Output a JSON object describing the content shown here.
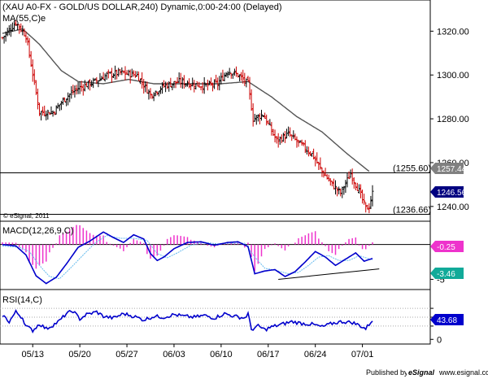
{
  "header": {
    "title": "(XAU A0-FX - GOLD/US DOLLAR,240) Dynamic,0:00-24:00 (Delayed)",
    "ma_label": "MA(55,C)e"
  },
  "copyright": "© eSignal, 2011",
  "footer": {
    "published_by": "Published by",
    "esignal": "eSignal",
    "site": "www.esignal.com"
  },
  "colors": {
    "up_bar": "#000000",
    "down_bar": "#cc0000",
    "ma_line": "#555555",
    "macd_line": "#0000cc",
    "signal_line": "#66bbee",
    "histogram": "#ee33cc",
    "rsi_line": "#0000cc",
    "macd_tag": "#ee33cc",
    "signal_tag": "#11aa99",
    "rsi_tag": "#0000cc",
    "price_tag": "#000080",
    "ma_tag": "#808080"
  },
  "chart_data": [
    {
      "type": "candlestick",
      "panel": "price",
      "ylim": [
        1234,
        1332
      ],
      "yticks": [
        1240.0,
        1260.0,
        1280.0,
        1300.0,
        1320.0
      ],
      "ytick_labels": [
        "1240.00",
        "1260.00",
        "1280.00",
        "1300.00",
        "1320.00"
      ],
      "x_labels": [
        "05/13",
        "05/20",
        "05/27",
        "06/03",
        "06/10",
        "06/17",
        "06/24",
        "07/01"
      ],
      "x_label_index": [
        18,
        46,
        74,
        102,
        130,
        158,
        186,
        214
      ],
      "x_count": 220,
      "close_anchors": [
        [
          0,
          1317
        ],
        [
          8,
          1324
        ],
        [
          14,
          1318
        ],
        [
          22,
          1283
        ],
        [
          30,
          1283
        ],
        [
          38,
          1290
        ],
        [
          45,
          1294
        ],
        [
          55,
          1297
        ],
        [
          62,
          1300
        ],
        [
          70,
          1301
        ],
        [
          80,
          1300
        ],
        [
          88,
          1291
        ],
        [
          96,
          1295
        ],
        [
          105,
          1297
        ],
        [
          112,
          1296
        ],
        [
          120,
          1295
        ],
        [
          128,
          1296
        ],
        [
          134,
          1302
        ],
        [
          140,
          1300
        ],
        [
          146,
          1296
        ],
        [
          149,
          1280
        ],
        [
          155,
          1282
        ],
        [
          163,
          1270
        ],
        [
          170,
          1273
        ],
        [
          176,
          1269
        ],
        [
          184,
          1264
        ],
        [
          190,
          1256
        ],
        [
          196,
          1250
        ],
        [
          201,
          1246
        ],
        [
          207,
          1255
        ],
        [
          212,
          1247
        ],
        [
          216,
          1239
        ],
        [
          218,
          1240
        ],
        [
          220,
          1246
        ]
      ],
      "ma_anchors": [
        [
          0,
          1319
        ],
        [
          12,
          1321
        ],
        [
          22,
          1314
        ],
        [
          35,
          1302
        ],
        [
          45,
          1297
        ],
        [
          60,
          1296
        ],
        [
          75,
          1298
        ],
        [
          90,
          1296
        ],
        [
          110,
          1296
        ],
        [
          130,
          1296
        ],
        [
          146,
          1297
        ],
        [
          160,
          1290
        ],
        [
          175,
          1281
        ],
        [
          190,
          1274
        ],
        [
          205,
          1264
        ],
        [
          218,
          1256
        ]
      ],
      "horizontal_levels": [
        1255.6,
        1236.66
      ],
      "horizontal_level_labels": [
        "(1255.60)",
        "(1236.66)"
      ],
      "ma_tag": "1257.44181",
      "price_tag": "1246.566"
    },
    {
      "type": "macd",
      "panel": "macd",
      "label": "MACD(12,26,9,C)",
      "ylim": [
        -6.0,
        3.0
      ],
      "ytick_labels": [
        "-5"
      ],
      "zero_line": true,
      "macd_anchors": [
        [
          0,
          0.0
        ],
        [
          8,
          -0.2
        ],
        [
          14,
          -1.5
        ],
        [
          20,
          -4.5
        ],
        [
          26,
          -5.6
        ],
        [
          32,
          -4.7
        ],
        [
          38,
          -2.8
        ],
        [
          45,
          -0.4
        ],
        [
          52,
          0.5
        ],
        [
          60,
          1.8
        ],
        [
          66,
          1.0
        ],
        [
          72,
          0.3
        ],
        [
          78,
          1.4
        ],
        [
          84,
          0.8
        ],
        [
          88,
          -1.3
        ],
        [
          92,
          -2.3
        ],
        [
          96,
          -1.8
        ],
        [
          102,
          -0.6
        ],
        [
          110,
          0.3
        ],
        [
          118,
          0.4
        ],
        [
          126,
          -0.1
        ],
        [
          134,
          0.3
        ],
        [
          140,
          0.4
        ],
        [
          146,
          -0.3
        ],
        [
          150,
          -4.2
        ],
        [
          156,
          -3.8
        ],
        [
          162,
          -3.6
        ],
        [
          168,
          -4.6
        ],
        [
          174,
          -3.9
        ],
        [
          180,
          -2.5
        ],
        [
          186,
          -1.0
        ],
        [
          192,
          -1.8
        ],
        [
          198,
          -3.0
        ],
        [
          204,
          -2.1
        ],
        [
          210,
          -1.2
        ],
        [
          215,
          -2.4
        ],
        [
          220,
          -2.0
        ]
      ],
      "signal_anchors": [
        [
          0,
          -0.2
        ],
        [
          10,
          -0.4
        ],
        [
          16,
          -1.0
        ],
        [
          22,
          -3.0
        ],
        [
          28,
          -4.6
        ],
        [
          34,
          -4.9
        ],
        [
          40,
          -3.5
        ],
        [
          48,
          -1.5
        ],
        [
          55,
          0.2
        ],
        [
          62,
          1.3
        ],
        [
          70,
          0.9
        ],
        [
          78,
          0.9
        ],
        [
          86,
          0.6
        ],
        [
          92,
          -1.3
        ],
        [
          98,
          -1.9
        ],
        [
          104,
          -1.2
        ],
        [
          112,
          -0.1
        ],
        [
          120,
          0.3
        ],
        [
          128,
          0.1
        ],
        [
          136,
          0.2
        ],
        [
          144,
          0.2
        ],
        [
          150,
          -1.8
        ],
        [
          156,
          -3.4
        ],
        [
          164,
          -3.8
        ],
        [
          170,
          -4.2
        ],
        [
          176,
          -4.0
        ],
        [
          182,
          -3.0
        ],
        [
          188,
          -1.8
        ],
        [
          194,
          -1.6
        ],
        [
          200,
          -2.3
        ],
        [
          206,
          -2.3
        ],
        [
          212,
          -1.6
        ],
        [
          216,
          -1.9
        ],
        [
          220,
          -2.2
        ]
      ],
      "trendline": [
        [
          164,
          -5.0
        ],
        [
          224,
          -3.5
        ]
      ],
      "macd_tag": "-0.25",
      "signal_tag": "-3.46"
    },
    {
      "type": "line",
      "panel": "rsi",
      "label": "RSI(14,C)",
      "ylim": [
        -5,
        105
      ],
      "yticks": [
        0,
        30,
        50,
        70
      ],
      "ytick_labels": [
        "0",
        "",
        "",
        ""
      ],
      "series": [
        {
          "values_anchors": [
            [
              0,
              55
            ],
            [
              4,
              40
            ],
            [
              8,
              62
            ],
            [
              12,
              48
            ],
            [
              14,
              30
            ],
            [
              18,
              20
            ],
            [
              22,
              35
            ],
            [
              26,
              24
            ],
            [
              30,
              32
            ],
            [
              34,
              42
            ],
            [
              38,
              58
            ],
            [
              42,
              64
            ],
            [
              46,
              46
            ],
            [
              50,
              56
            ],
            [
              56,
              62
            ],
            [
              60,
              52
            ],
            [
              66,
              48
            ],
            [
              72,
              58
            ],
            [
              78,
              52
            ],
            [
              84,
              44
            ],
            [
              90,
              52
            ],
            [
              96,
              50
            ],
            [
              102,
              56
            ],
            [
              108,
              52
            ],
            [
              114,
              50
            ],
            [
              120,
              54
            ],
            [
              126,
              48
            ],
            [
              132,
              58
            ],
            [
              138,
              52
            ],
            [
              144,
              48
            ],
            [
              146,
              58
            ],
            [
              148,
              22
            ],
            [
              152,
              30
            ],
            [
              156,
              22
            ],
            [
              160,
              28
            ],
            [
              166,
              34
            ],
            [
              172,
              40
            ],
            [
              178,
              36
            ],
            [
              184,
              34
            ],
            [
              190,
              28
            ],
            [
              196,
              36
            ],
            [
              202,
              40
            ],
            [
              208,
              38
            ],
            [
              212,
              32
            ],
            [
              216,
              24
            ],
            [
              218,
              34
            ],
            [
              220,
              44
            ]
          ]
        }
      ],
      "rsi_tag": "43.68"
    }
  ]
}
